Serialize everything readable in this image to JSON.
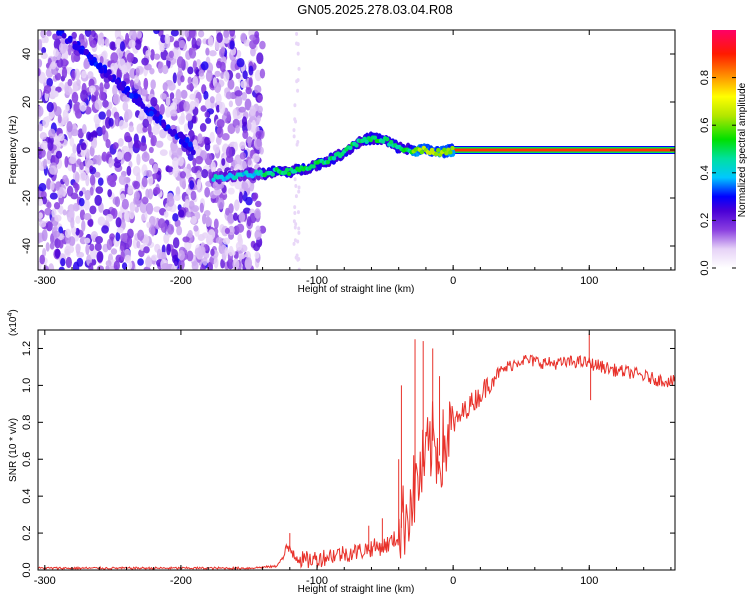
{
  "chart_data": [
    {
      "type": "heatmap",
      "title": "GN05.2025.278.03.04.R08",
      "xlabel": "Height of straight line (km)",
      "ylabel": "Frequency (Hz)",
      "xlim": [
        -305,
        163
      ],
      "ylim": [
        -50,
        50
      ],
      "x_ticks": [
        -300,
        -200,
        -100,
        0,
        100
      ],
      "x_tick_labels": [
        "-300",
        "-200",
        "-100",
        "0",
        "100"
      ],
      "y_ticks": [
        -40,
        -20,
        0,
        20,
        40
      ],
      "y_tick_labels": [
        "-40",
        "-20",
        "0",
        "20",
        "40"
      ],
      "colorbar": {
        "label": "Normalized spectral amplitude",
        "range": [
          0,
          1
        ],
        "ticks": [
          0.0,
          0.2,
          0.4,
          0.6,
          0.8
        ],
        "tick_labels": [
          "0.0",
          "0.2",
          "0.4",
          "0.6",
          "0.8"
        ]
      },
      "ridge": {
        "x": [
          -180,
          -165,
          -150,
          -140,
          -130,
          -120,
          -110,
          -100,
          -90,
          -80,
          -70,
          -60,
          -50,
          -40,
          -30,
          -20,
          -10,
          0,
          163
        ],
        "frequency": [
          -12,
          -11,
          -10,
          -10,
          -9,
          -9,
          -8,
          -6,
          -4,
          -1,
          3,
          5,
          4,
          1,
          0,
          0,
          -1,
          0,
          0
        ]
      },
      "diagonal_streak": {
        "x": [
          -290,
          -190
        ],
        "frequency": [
          50,
          0
        ]
      },
      "noise_region": {
        "x_from": -305,
        "x_to": -140
      }
    },
    {
      "type": "line",
      "xlabel": "Height of straight line (km)",
      "ylabel": "SNR (10 * v/v)",
      "scale_note": "(x10",
      "scale_exp": "4",
      "xlim": [
        -305,
        163
      ],
      "ylim": [
        0,
        1.3
      ],
      "x_ticks": [
        -300,
        -200,
        -100,
        0,
        100
      ],
      "x_tick_labels": [
        "-300",
        "-200",
        "-100",
        "0",
        "100"
      ],
      "y_ticks": [
        0.0,
        0.2,
        0.4,
        0.6,
        0.8,
        1.0,
        1.2
      ],
      "y_tick_labels": [
        "0.0",
        "0.2",
        "0.4",
        "0.6",
        "0.8",
        "1.0",
        "1.2"
      ],
      "series": [
        {
          "name": "SNR",
          "color": "#e8322b",
          "x": [
            -305,
            -250,
            -200,
            -150,
            -130,
            -120,
            -115,
            -110,
            -100,
            -90,
            -80,
            -70,
            -60,
            -50,
            -40,
            -35,
            -30,
            -25,
            -20,
            -15,
            -10,
            -5,
            0,
            10,
            20,
            30,
            40,
            50,
            60,
            70,
            80,
            90,
            100,
            110,
            120,
            130,
            140,
            150,
            163
          ],
          "values": [
            0.01,
            0.01,
            0.01,
            0.01,
            0.02,
            0.12,
            0.08,
            0.05,
            0.06,
            0.08,
            0.09,
            0.1,
            0.12,
            0.13,
            0.18,
            0.3,
            0.4,
            0.5,
            0.6,
            0.7,
            0.62,
            0.7,
            0.78,
            0.88,
            0.95,
            1.05,
            1.1,
            1.14,
            1.13,
            1.12,
            1.12,
            1.13,
            1.12,
            1.1,
            1.08,
            1.07,
            1.05,
            1.03,
            1.02
          ],
          "spikes": [
            {
              "x": -120,
              "value": 0.2
            },
            {
              "x": -62,
              "value": 0.24
            },
            {
              "x": -52,
              "value": 0.28
            },
            {
              "x": -40,
              "value": 0.6
            },
            {
              "x": -38,
              "value": 1.0
            },
            {
              "x": -28,
              "value": 1.25
            },
            {
              "x": -22,
              "value": 1.24
            },
            {
              "x": -15,
              "value": 1.2
            },
            {
              "x": -10,
              "value": 1.05
            },
            {
              "x": 100,
              "value": 1.28
            },
            {
              "x": 101,
              "value": 0.92
            }
          ]
        }
      ]
    }
  ]
}
